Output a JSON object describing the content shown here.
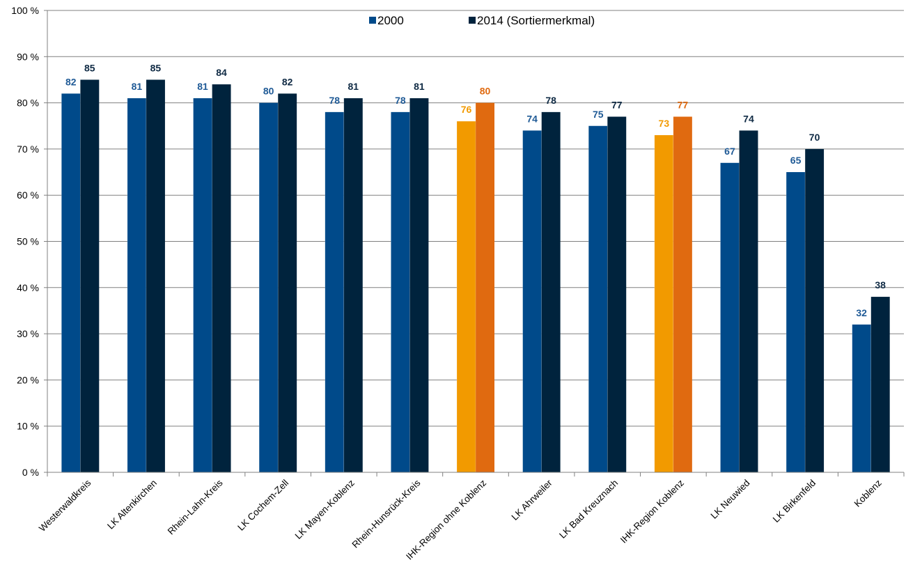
{
  "chart_data": {
    "type": "bar",
    "title": "",
    "xlabel": "",
    "ylabel": "",
    "ylim": [
      0,
      100
    ],
    "y_ticks": [
      0,
      10,
      20,
      30,
      40,
      50,
      60,
      70,
      80,
      90,
      100
    ],
    "y_tick_labels": [
      "0 %",
      "10 %",
      "20 %",
      "30 %",
      "40 %",
      "50 %",
      "60 %",
      "70 %",
      "80 %",
      "90 %",
      "100 %"
    ],
    "grid": "horizontal",
    "legend_position": "top-center",
    "categories": [
      "Westerwaldkreis",
      "LK Altenkirchen",
      "Rhein-Lahn-Kreis",
      "LK Cochem-Zell",
      "LK Mayen-Koblenz",
      "Rhein-Hunsrück-Kreis",
      "IHK-Region ohne  Koblenz",
      "LK Ahrweiler",
      "LK Bad Kreuznach",
      "IHK-Region Koblenz",
      "LK Neuwied",
      "LK Birkenfeld",
      "Koblenz"
    ],
    "series": [
      {
        "name": "2000",
        "color": "#004a8a",
        "label_color": "#1f5a96",
        "values": [
          82,
          81,
          81,
          80,
          78,
          78,
          76,
          74,
          75,
          73,
          67,
          65,
          32
        ]
      },
      {
        "name": "2014 (Sortiermerkmal)",
        "color": "#00233d",
        "label_color": "#0f2a44",
        "values": [
          85,
          85,
          84,
          82,
          81,
          81,
          80,
          78,
          77,
          77,
          74,
          70,
          38
        ]
      }
    ],
    "highlight_categories": [
      6,
      9
    ],
    "highlight_colors": {
      "2000": "#f29a00",
      "2014 (Sortiermerkmal)": "#e06a10"
    },
    "highlight_label_colors": {
      "2000": "#f29a00",
      "2014 (Sortiermerkmal)": "#e06a10"
    },
    "gridline_color": "#808080",
    "axis_color": "#808080"
  }
}
